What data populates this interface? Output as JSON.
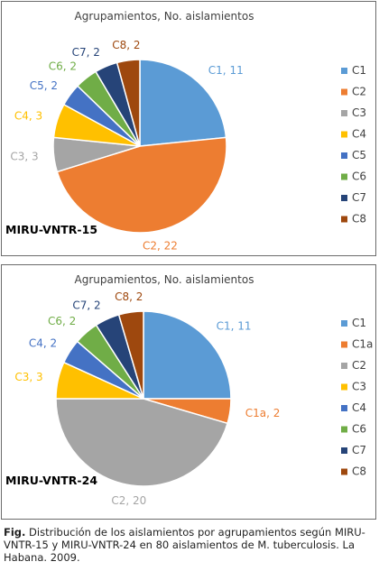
{
  "charts": [
    {
      "title": "Agrupamientos, No. aislamientos",
      "label": "MIRU-VNTR-15"
    },
    {
      "title": "Agrupamientos, No. aislamientos",
      "label": "MIRU-VNTR-24"
    }
  ],
  "chart_data": [
    {
      "type": "pie",
      "title": "Agrupamientos, No. aislamientos",
      "panel_label": "MIRU-VNTR-15",
      "legend_position": "right",
      "slices": [
        {
          "name": "C1",
          "value": 11,
          "label": "C1, 11",
          "color": "#5B9BD5"
        },
        {
          "name": "C2",
          "value": 22,
          "label": "C2, 22",
          "color": "#ED7D31"
        },
        {
          "name": "C3",
          "value": 3,
          "label": "C3, 3",
          "color": "#A5A5A5"
        },
        {
          "name": "C4",
          "value": 3,
          "label": "C4, 3",
          "color": "#FFC000"
        },
        {
          "name": "C5",
          "value": 2,
          "label": "C5, 2",
          "color": "#4472C4"
        },
        {
          "name": "C6",
          "value": 2,
          "label": "C6, 2",
          "color": "#70AD47"
        },
        {
          "name": "C7",
          "value": 2,
          "label": "C7, 2",
          "color": "#264478"
        },
        {
          "name": "C8",
          "value": 2,
          "label": "C8, 2",
          "color": "#9E480E"
        }
      ]
    },
    {
      "type": "pie",
      "title": "Agrupamientos, No. aislamientos",
      "panel_label": "MIRU-VNTR-24",
      "legend_position": "right",
      "slices": [
        {
          "name": "C1",
          "value": 11,
          "label": "C1, 11",
          "color": "#5B9BD5"
        },
        {
          "name": "C1a",
          "value": 2,
          "label": "C1a, 2",
          "color": "#ED7D31"
        },
        {
          "name": "C2",
          "value": 20,
          "label": "C2, 20",
          "color": "#A5A5A5"
        },
        {
          "name": "C3",
          "value": 3,
          "label": "C3, 3",
          "color": "#FFC000"
        },
        {
          "name": "C4",
          "value": 2,
          "label": "C4, 2",
          "color": "#4472C4"
        },
        {
          "name": "C6",
          "value": 2,
          "label": "C6, 2",
          "color": "#70AD47"
        },
        {
          "name": "C7",
          "value": 2,
          "label": "C7, 2",
          "color": "#264478"
        },
        {
          "name": "C8",
          "value": 2,
          "label": "C8, 2",
          "color": "#9E480E"
        }
      ]
    }
  ],
  "caption": {
    "lead": "Fig.",
    "text": " Distribución de los aislamientos por agrupamientos según MIRU-VNTR-15 y MIRU-VNTR-24 en 80 aislamientos de M. tuberculosis. La Habana. 2009."
  }
}
